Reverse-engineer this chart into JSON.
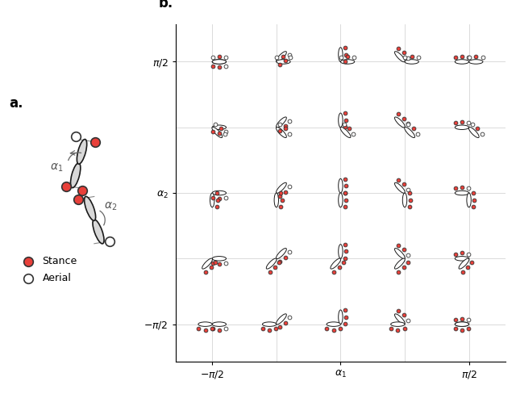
{
  "fig_width": 6.4,
  "fig_height": 4.98,
  "dpi": 100,
  "panel_a_label": "a.",
  "panel_b_label": "b.",
  "stance_color": "#e8403a",
  "aerial_color": "#ffffff",
  "dot_edge": "#333333",
  "body_edge": "#1a1a1a",
  "body_face": "#ffffff",
  "grid_n": 5,
  "alphas": [
    -1.5708,
    -0.7854,
    0.0,
    0.7854,
    1.5708
  ],
  "foot_pattern": [
    [
      [
        1,
        0,
        1,
        1,
        1,
        0
      ],
      [
        1,
        0,
        1,
        1,
        0,
        1
      ],
      [
        1,
        0,
        1,
        0,
        1,
        0
      ],
      [
        1,
        0,
        0,
        1,
        1,
        0
      ],
      [
        0,
        1,
        0,
        1,
        1,
        0
      ]
    ],
    [
      [
        1,
        0,
        1,
        1,
        1,
        0
      ],
      [
        1,
        0,
        1,
        1,
        0,
        1
      ],
      [
        1,
        0,
        1,
        0,
        1,
        0
      ],
      [
        1,
        0,
        0,
        1,
        1,
        0
      ],
      [
        0,
        1,
        0,
        1,
        1,
        0
      ]
    ],
    [
      [
        1,
        0,
        1,
        1,
        1,
        0
      ],
      [
        1,
        0,
        1,
        1,
        0,
        1
      ],
      [
        1,
        0,
        1,
        0,
        1,
        0
      ],
      [
        1,
        0,
        0,
        1,
        1,
        0
      ],
      [
        0,
        1,
        0,
        1,
        1,
        0
      ]
    ],
    [
      [
        1,
        0,
        1,
        1,
        1,
        0
      ],
      [
        1,
        0,
        1,
        1,
        0,
        1
      ],
      [
        1,
        0,
        1,
        0,
        1,
        0
      ],
      [
        1,
        0,
        0,
        1,
        1,
        0
      ],
      [
        0,
        1,
        0,
        1,
        1,
        0
      ]
    ],
    [
      [
        1,
        0,
        1,
        1,
        1,
        0
      ],
      [
        1,
        0,
        1,
        1,
        0,
        1
      ],
      [
        1,
        0,
        1,
        0,
        1,
        0
      ],
      [
        1,
        0,
        0,
        1,
        1,
        0
      ],
      [
        0,
        1,
        0,
        1,
        1,
        0
      ]
    ]
  ]
}
